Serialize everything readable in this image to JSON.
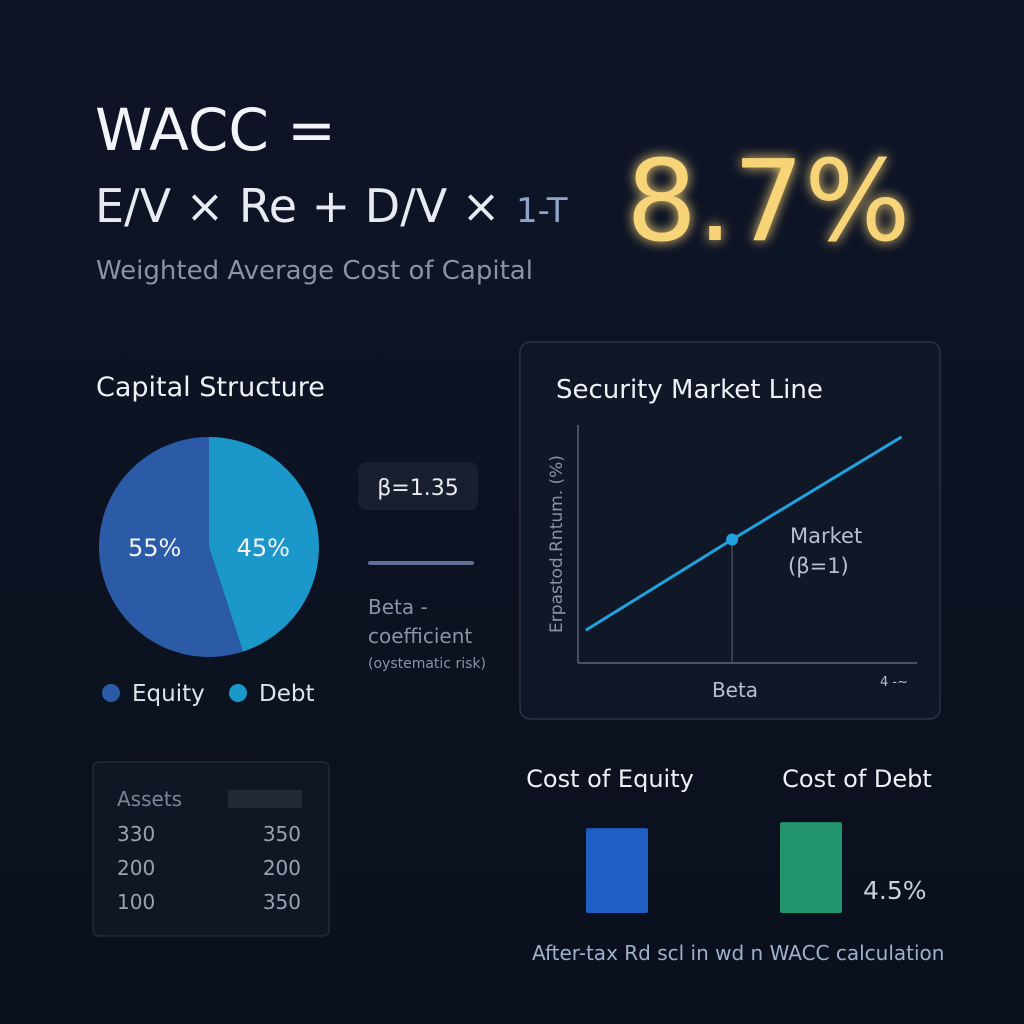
{
  "header": {
    "title": "WACC =",
    "formula": "E/V × Re + D/V ×",
    "formula_tail": "1-T",
    "result": "8.7%",
    "subtitle": "Weighted Average Cost of Capital"
  },
  "chart_data": [
    {
      "type": "pie",
      "title": "Capital Structure",
      "categories": [
        "Equity",
        "Debt"
      ],
      "values": [
        55,
        45
      ],
      "value_labels": [
        "55%",
        "45%"
      ],
      "colors": [
        "#2b5aa6",
        "#1b97c9"
      ]
    },
    {
      "type": "line",
      "title": "Security Market Line",
      "x_label": "Beta",
      "y_label": "Erpastod.Rntum. (%)",
      "corner_label": "4 -~",
      "x": [
        0.05,
        1,
        2.1
      ],
      "values": [
        2.2,
        8.3,
        15.2
      ],
      "xlim": [
        0,
        2.2
      ],
      "ylim": [
        0,
        16
      ],
      "color": "#1fa3df",
      "annotation": [
        "Market",
        "(β=1)"
      ]
    },
    {
      "type": "bar",
      "categories": [
        "Cost of Equity",
        "Cost of Debt"
      ],
      "values": [
        4.2,
        4.5
      ],
      "value_labels": [
        null,
        "4.5%"
      ],
      "colors": [
        "#1f5fc4",
        "#23956c"
      ],
      "ylim": [
        0,
        5
      ],
      "footnote": "After-tax Rd scl in wd n WACC calculation"
    }
  ],
  "beta_card": {
    "value": "β=1.35",
    "label": [
      "Beta -",
      "coefficient"
    ],
    "note": "(oystematic risk)"
  },
  "assets_table": {
    "header": "Assets",
    "rows": [
      [
        "330",
        "350"
      ],
      [
        "200",
        "200"
      ],
      [
        "100",
        "350"
      ]
    ]
  }
}
